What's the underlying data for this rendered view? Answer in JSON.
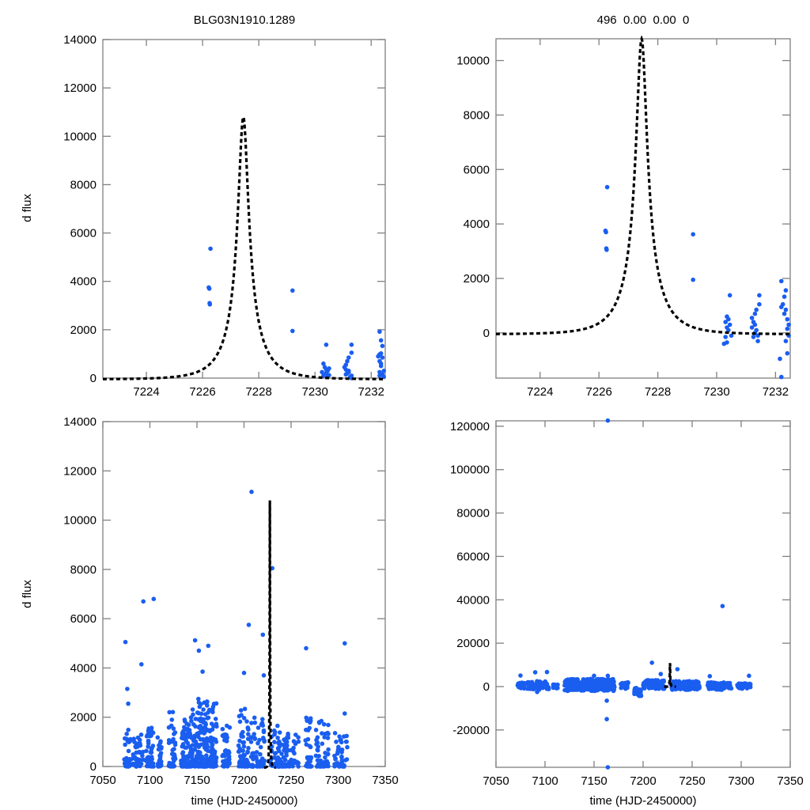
{
  "colors": {
    "points": "#1a5ef0",
    "model": "#000000",
    "axes": "#808080"
  },
  "chart_data": [
    {
      "id": "top-left",
      "type": "scatter",
      "title": "BLG03N1910.1289",
      "xlabel": "",
      "ylabel": "d flux",
      "xlim": [
        7222.45,
        7232.5
      ],
      "ylim": [
        0,
        14000
      ],
      "xticks": [
        7224,
        7226,
        7228,
        7230,
        7232
      ],
      "yticks": [
        0,
        2000,
        4000,
        6000,
        8000,
        10000,
        12000,
        14000
      ],
      "grid": false,
      "model": {
        "type": "paczynski",
        "t0": 7227.45,
        "peak": 10800,
        "u0": 0.16,
        "tE": 1.15,
        "baseline": -50
      },
      "points": [
        [
          7226.28,
          5350
        ],
        [
          7226.22,
          3750
        ],
        [
          7226.24,
          3700
        ],
        [
          7226.25,
          3100
        ],
        [
          7226.26,
          3050
        ],
        [
          7229.2,
          3620
        ],
        [
          7229.2,
          1950
        ],
        [
          7230.4,
          1380
        ],
        [
          7230.3,
          600
        ],
        [
          7230.35,
          450
        ],
        [
          7230.45,
          300
        ],
        [
          7230.4,
          200
        ],
        [
          7230.5,
          120
        ],
        [
          7230.3,
          100
        ],
        [
          7230.45,
          50
        ],
        [
          7230.5,
          400
        ],
        [
          7230.25,
          250
        ],
        [
          7230.4,
          350
        ],
        [
          7231.3,
          1380
        ],
        [
          7231.3,
          1050
        ],
        [
          7231.2,
          850
        ],
        [
          7231.15,
          700
        ],
        [
          7231.1,
          550
        ],
        [
          7231.05,
          450
        ],
        [
          7231.1,
          350
        ],
        [
          7231.2,
          300
        ],
        [
          7231.15,
          200
        ],
        [
          7231.3,
          100
        ],
        [
          7231.25,
          50
        ],
        [
          7231.2,
          250
        ],
        [
          7231.3,
          0
        ],
        [
          7231.1,
          150
        ],
        [
          7232.3,
          1920
        ],
        [
          7232.35,
          1560
        ],
        [
          7232.4,
          1330
        ],
        [
          7232.35,
          1020
        ],
        [
          7232.3,
          980
        ],
        [
          7232.25,
          900
        ],
        [
          7232.4,
          850
        ],
        [
          7232.3,
          700
        ],
        [
          7232.35,
          600
        ],
        [
          7232.45,
          300
        ],
        [
          7232.3,
          250
        ],
        [
          7232.4,
          150
        ],
        [
          7232.45,
          50
        ],
        [
          7232.35,
          500
        ],
        [
          7232.3,
          100
        ]
      ]
    },
    {
      "id": "top-right",
      "type": "scatter",
      "title": "496  0.00  0.00  0",
      "xlabel": "",
      "ylabel": "",
      "xlim": [
        7222.5,
        7232.5
      ],
      "ylim": [
        -1660,
        10800
      ],
      "xticks": [
        7224,
        7226,
        7228,
        7230,
        7232
      ],
      "yticks": [
        0,
        2000,
        4000,
        6000,
        8000,
        10000
      ],
      "grid": false,
      "model": {
        "type": "paczynski",
        "t0": 7227.45,
        "peak": 10800,
        "u0": 0.16,
        "tE": 1.15,
        "baseline": -50
      },
      "points": [
        [
          7226.28,
          5350
        ],
        [
          7226.22,
          3750
        ],
        [
          7226.24,
          3700
        ],
        [
          7226.25,
          3100
        ],
        [
          7226.26,
          3050
        ],
        [
          7229.2,
          3620
        ],
        [
          7229.2,
          1950
        ],
        [
          7230.45,
          1380
        ],
        [
          7230.35,
          600
        ],
        [
          7230.4,
          500
        ],
        [
          7230.3,
          400
        ],
        [
          7230.45,
          300
        ],
        [
          7230.35,
          200
        ],
        [
          7230.4,
          100
        ],
        [
          7230.5,
          -100
        ],
        [
          7230.3,
          -150
        ],
        [
          7230.35,
          -350
        ],
        [
          7230.25,
          -400
        ],
        [
          7231.45,
          1380
        ],
        [
          7231.45,
          1050
        ],
        [
          7231.35,
          850
        ],
        [
          7231.3,
          700
        ],
        [
          7231.2,
          550
        ],
        [
          7231.25,
          400
        ],
        [
          7231.3,
          300
        ],
        [
          7231.2,
          200
        ],
        [
          7231.35,
          100
        ],
        [
          7231.3,
          0
        ],
        [
          7231.4,
          -100
        ],
        [
          7231.25,
          -150
        ],
        [
          7231.4,
          -300
        ],
        [
          7232.2,
          1900
        ],
        [
          7232.35,
          1560
        ],
        [
          7232.3,
          1330
        ],
        [
          7232.25,
          1050
        ],
        [
          7232.2,
          950
        ],
        [
          7232.35,
          850
        ],
        [
          7232.3,
          700
        ],
        [
          7232.4,
          500
        ],
        [
          7232.45,
          300
        ],
        [
          7232.4,
          150
        ],
        [
          7232.45,
          -100
        ],
        [
          7232.35,
          -300
        ],
        [
          7232.4,
          -750
        ],
        [
          7232.15,
          -950
        ],
        [
          7232.2,
          -1620
        ]
      ]
    },
    {
      "id": "bottom-left",
      "type": "scatter",
      "title": "",
      "xlabel": "time (HJD-2450000)",
      "ylabel": "d flux",
      "xlim": [
        7050,
        7350
      ],
      "ylim": [
        0,
        14000
      ],
      "xticks": [
        7050,
        7100,
        7150,
        7200,
        7250,
        7300,
        7350
      ],
      "yticks": [
        0,
        2000,
        4000,
        6000,
        8000,
        10000,
        12000,
        14000
      ],
      "grid": false,
      "model": {
        "type": "paczynski",
        "t0": 7227.45,
        "peak": 10800,
        "u0": 0.16,
        "tE": 1.15,
        "baseline": -50
      },
      "outliers": [
        [
          7208,
          11150
        ],
        [
          7230,
          8050
        ],
        [
          7093,
          6700
        ],
        [
          7104,
          6800
        ],
        [
          7074,
          5050
        ],
        [
          7148,
          5120
        ],
        [
          7162,
          4900
        ],
        [
          7091,
          4150
        ],
        [
          7076,
          3150
        ],
        [
          7077,
          2550
        ],
        [
          7200,
          3800
        ],
        [
          7205,
          5750
        ],
        [
          7220,
          5350
        ],
        [
          7266,
          4800
        ],
        [
          7307,
          5000
        ],
        [
          7307,
          2150
        ],
        [
          7221,
          3700
        ],
        [
          7152,
          4700
        ],
        [
          7156,
          3850
        ]
      ],
      "clusters": [
        {
          "x": [
            7072,
            7080
          ],
          "ymax": 1500,
          "n": 35
        },
        {
          "x": [
            7082,
            7093
          ],
          "ymax": 1300,
          "n": 45
        },
        {
          "x": [
            7096,
            7104
          ],
          "ymax": 1600,
          "n": 45
        },
        {
          "x": [
            7108,
            7113
          ],
          "ymax": 1200,
          "n": 25
        },
        {
          "x": [
            7120,
            7127
          ],
          "ymax": 2300,
          "n": 40
        },
        {
          "x": [
            7133,
            7145
          ],
          "ymax": 2000,
          "n": 90
        },
        {
          "x": [
            7145,
            7158
          ],
          "ymax": 2800,
          "n": 110
        },
        {
          "x": [
            7158,
            7171
          ],
          "ymax": 2800,
          "n": 110
        },
        {
          "x": [
            7177,
            7185
          ],
          "ymax": 1800,
          "n": 40
        },
        {
          "x": [
            7194,
            7205
          ],
          "ymax": 2500,
          "n": 60
        },
        {
          "x": [
            7207,
            7222
          ],
          "ymax": 2000,
          "n": 60
        },
        {
          "x": [
            7228,
            7240
          ],
          "ymax": 1800,
          "n": 55
        },
        {
          "x": [
            7240,
            7258
          ],
          "ymax": 1600,
          "n": 60
        },
        {
          "x": [
            7265,
            7272
          ],
          "ymax": 2000,
          "n": 35
        },
        {
          "x": [
            7276,
            7290
          ],
          "ymax": 2000,
          "n": 50
        },
        {
          "x": [
            7296,
            7310
          ],
          "ymax": 1400,
          "n": 45
        }
      ]
    },
    {
      "id": "bottom-right",
      "type": "scatter",
      "title": "",
      "xlabel": "time (HJD-2450000)",
      "ylabel": "",
      "xlim": [
        7050,
        7350
      ],
      "ylim": [
        -37200,
        122500
      ],
      "xticks": [
        7050,
        7100,
        7150,
        7200,
        7250,
        7300,
        7350
      ],
      "yticks": [
        -20000,
        0,
        20000,
        40000,
        60000,
        80000,
        100000,
        120000
      ],
      "grid": false,
      "model": {
        "type": "paczynski",
        "t0": 7227.45,
        "peak": 10800,
        "u0": 0.16,
        "tE": 1.15,
        "baseline": -50
      },
      "outliers": [
        [
          7164,
          122600
        ],
        [
          7281,
          37100
        ],
        [
          7164,
          -37200
        ],
        [
          7163,
          -15000
        ],
        [
          7163,
          -6500
        ],
        [
          7209,
          11000
        ],
        [
          7218,
          5800
        ],
        [
          7235,
          8000
        ],
        [
          7090,
          6600
        ],
        [
          7102,
          6700
        ],
        [
          7075,
          5100
        ],
        [
          7150,
          5000
        ],
        [
          7164,
          5000
        ],
        [
          7268,
          4800
        ],
        [
          7308,
          5000
        ],
        [
          7092,
          -2500
        ]
      ],
      "clusters": [
        {
          "x": [
            7072,
            7080
          ],
          "ymin": -1000,
          "ymax": 2000,
          "n": 30
        },
        {
          "x": [
            7082,
            7104
          ],
          "ymin": -1500,
          "ymax": 2500,
          "n": 70
        },
        {
          "x": [
            7108,
            7113
          ],
          "ymin": -800,
          "ymax": 1200,
          "n": 20
        },
        {
          "x": [
            7120,
            7171
          ],
          "ymin": -2000,
          "ymax": 3500,
          "n": 260
        },
        {
          "x": [
            7177,
            7185
          ],
          "ymin": -1000,
          "ymax": 2000,
          "n": 30
        },
        {
          "x": [
            7191,
            7198
          ],
          "ymin": -4500,
          "ymax": -500,
          "n": 35
        },
        {
          "x": [
            7200,
            7222
          ],
          "ymin": -1000,
          "ymax": 3000,
          "n": 90
        },
        {
          "x": [
            7228,
            7258
          ],
          "ymin": -1500,
          "ymax": 2500,
          "n": 110
        },
        {
          "x": [
            7265,
            7290
          ],
          "ymin": -1500,
          "ymax": 2000,
          "n": 80
        },
        {
          "x": [
            7296,
            7310
          ],
          "ymin": -1000,
          "ymax": 1500,
          "n": 40
        }
      ]
    }
  ]
}
